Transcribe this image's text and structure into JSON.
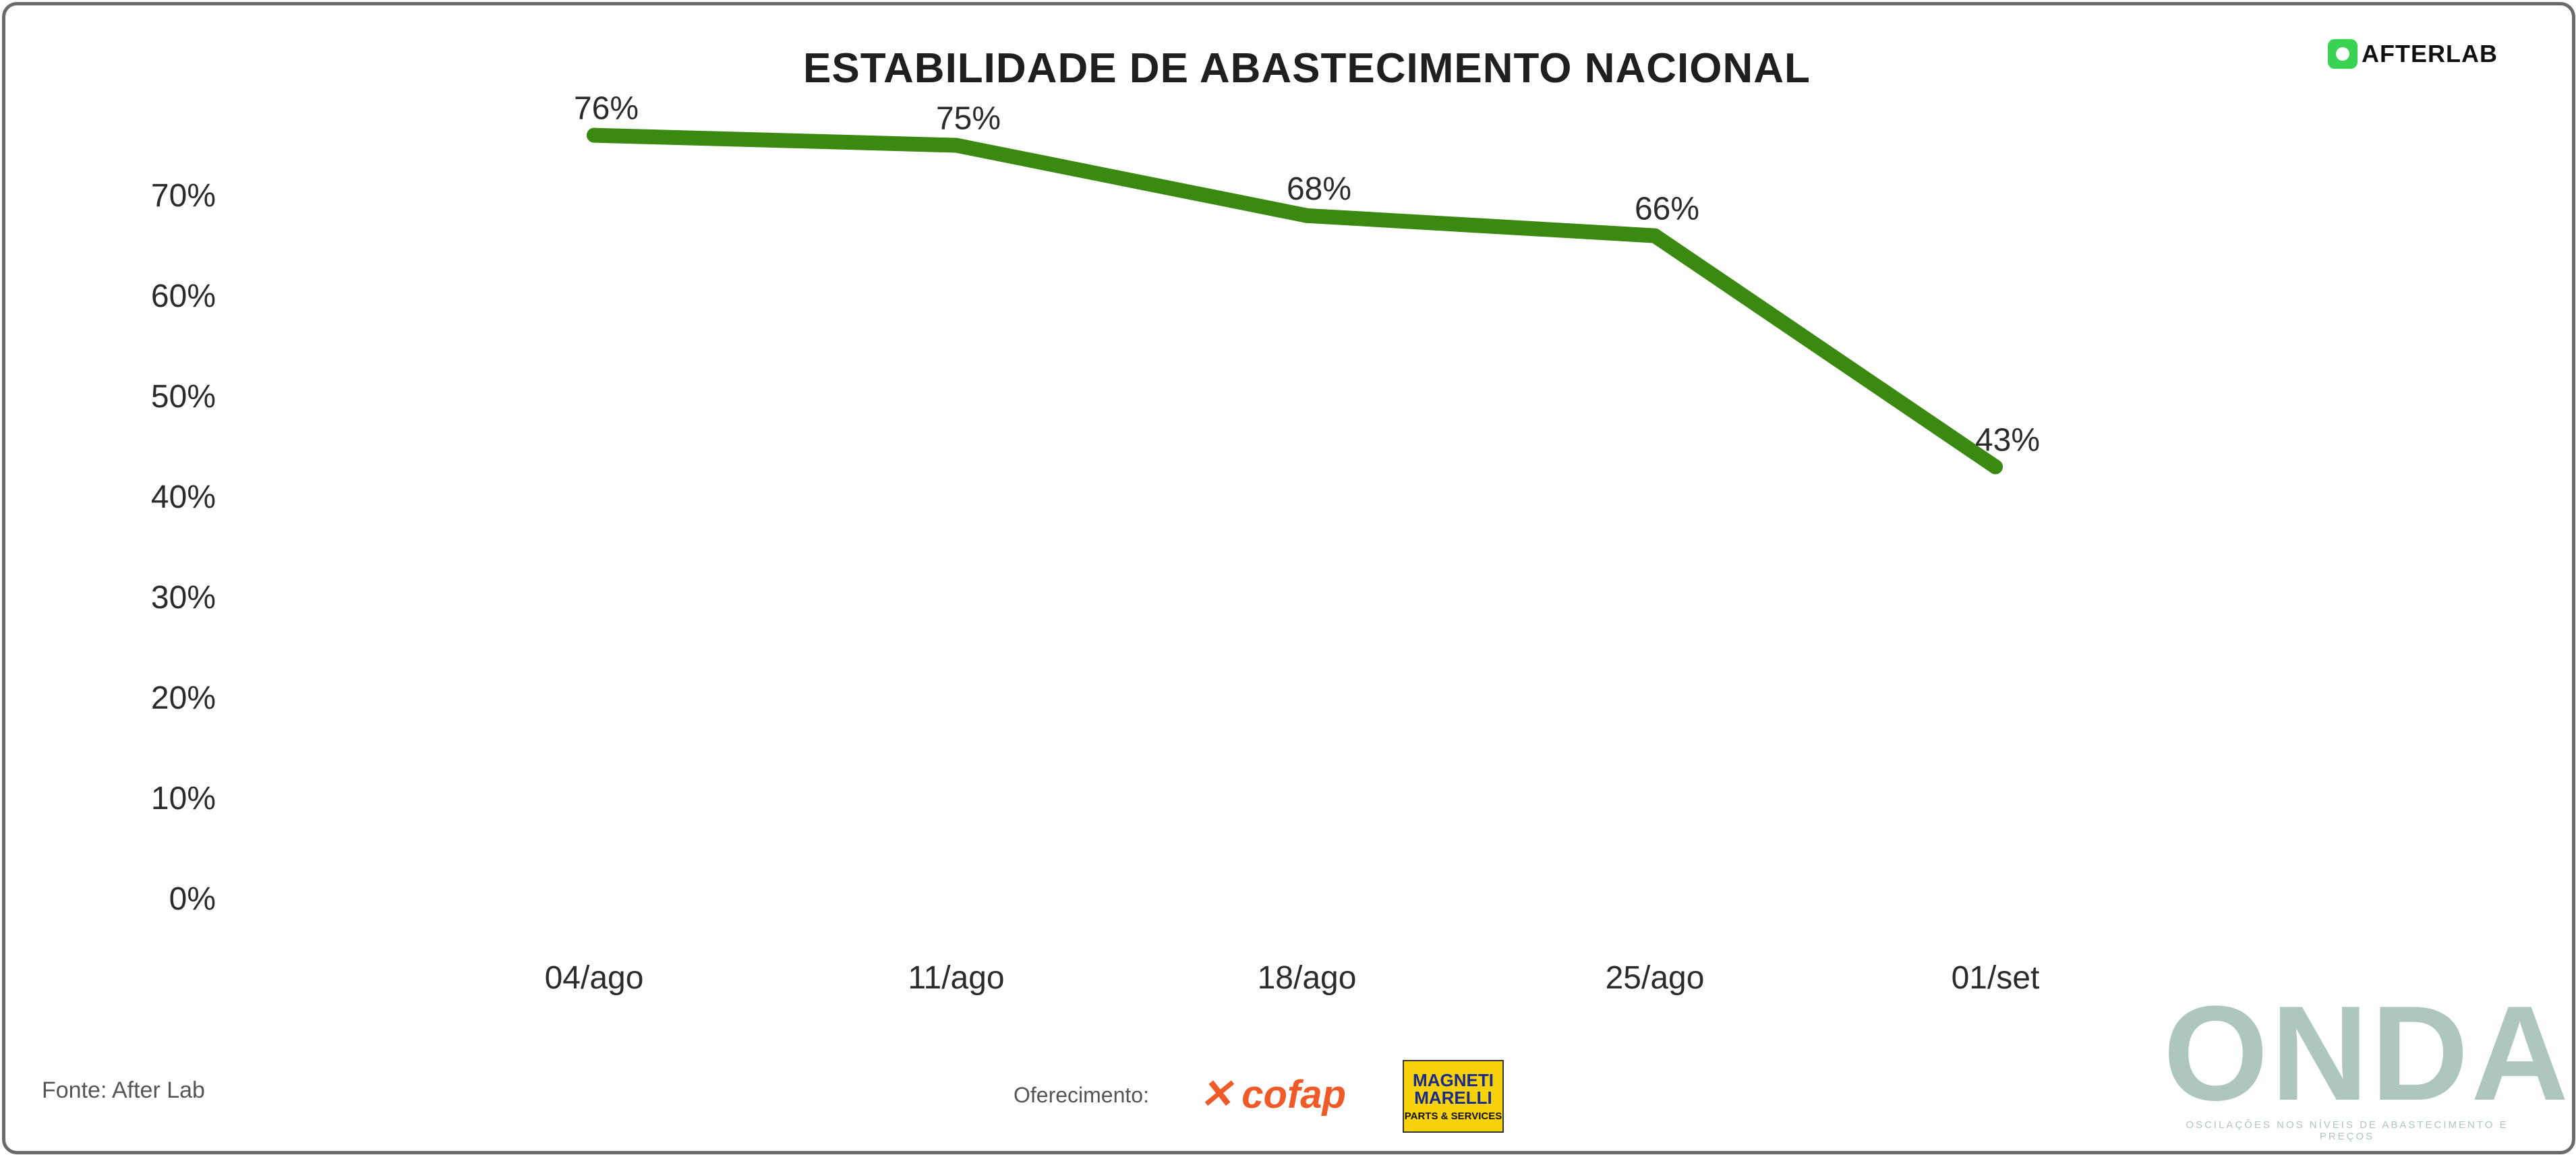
{
  "header": {
    "title": "ESTABILIDADE DE ABASTECIMENTO NACIONAL",
    "brand": "AFTERLAB"
  },
  "chart_data": {
    "type": "line",
    "title": "ESTABILIDADE DE ABASTECIMENTO NACIONAL",
    "xlabel": "",
    "ylabel": "",
    "categories": [
      "04/ago",
      "11/ago",
      "18/ago",
      "25/ago",
      "01/set"
    ],
    "series": [
      {
        "values": [
          76,
          75,
          68,
          66,
          43
        ],
        "labels": [
          "76%",
          "75%",
          "68%",
          "66%",
          "43%"
        ],
        "color": "#3a8a12"
      }
    ],
    "y_ticks": [
      "0%",
      "10%",
      "20%",
      "30%",
      "40%",
      "50%",
      "60%",
      "70%"
    ],
    "y_tick_values": [
      0,
      10,
      20,
      30,
      40,
      50,
      60,
      70
    ],
    "ylim": [
      0,
      76
    ],
    "grid": false,
    "legend": "none"
  },
  "footer": {
    "source": "Fonte: After Lab",
    "sponsor_label": "Oferecimento:",
    "sponsor1": "cofap",
    "sponsor2_name": "MAGNETI\nMARELLI",
    "sponsor2_sub": "PARTS & SERVICES",
    "watermark": "ONDA",
    "watermark_sub": "OSCILAÇÕES NOS NÍVEIS DE ABASTECIMENTO E PREÇOS"
  },
  "colors": {
    "line": "#3a8a12",
    "text": "#2b2b2b",
    "brand_green": "#39d353",
    "cofap": "#f05a28",
    "magneti_bg": "#f7d20a",
    "watermark": "#adc6bf"
  },
  "icons": {
    "brand_logo": "afterlab-logo-icon",
    "cofap_logo": "cofap-logo-icon"
  }
}
